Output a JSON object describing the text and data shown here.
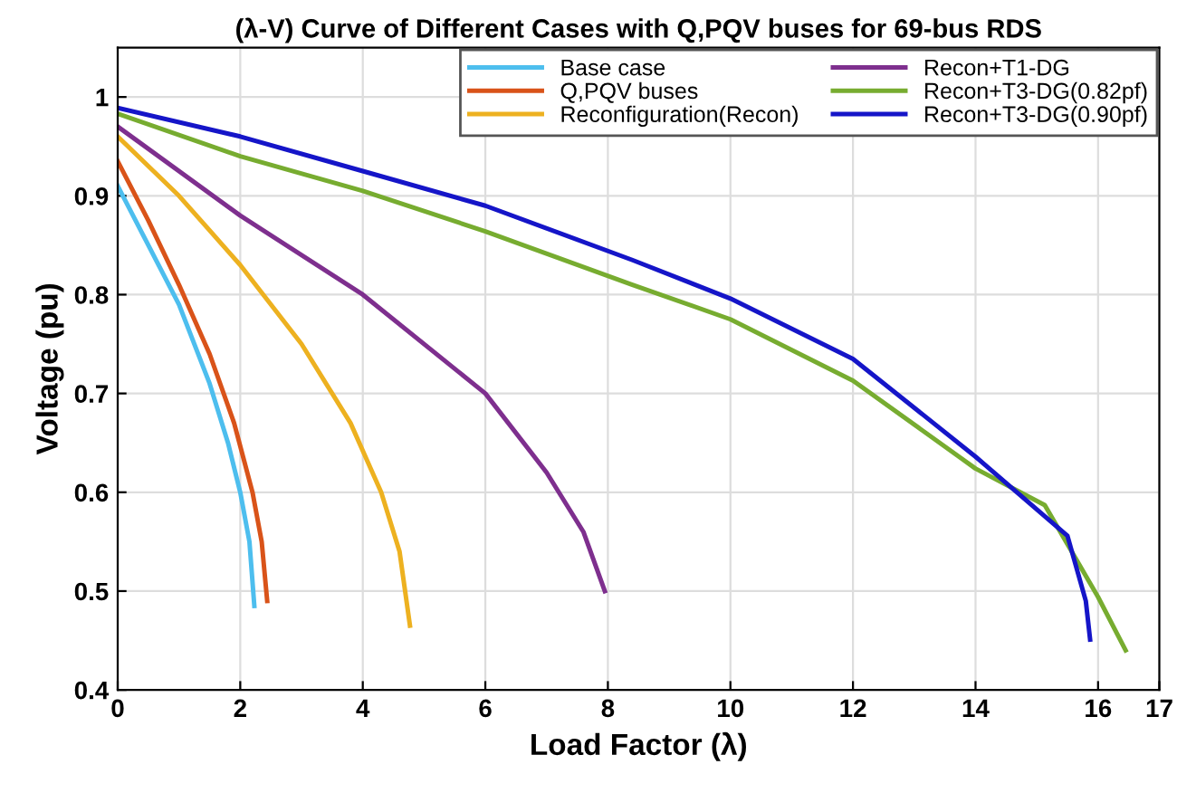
{
  "chart_data": {
    "type": "line",
    "title": "(λ-V) Curve of Different Cases with Q,PQV buses for 69-bus RDS",
    "xlabel": "Load Factor (λ)",
    "ylabel": "Voltage (pu)",
    "xlim": [
      0,
      17
    ],
    "xticks": [
      0,
      2,
      4,
      6,
      8,
      10,
      12,
      14,
      16,
      17
    ],
    "ylim": [
      0.4,
      1.05
    ],
    "yticks": [
      0.4,
      0.5,
      0.6,
      0.7,
      0.8,
      0.9,
      1
    ],
    "grid": true,
    "legend": "top right",
    "series": [
      {
        "name": "Base case",
        "color": "#4dbeee",
        "x": [
          0,
          0.5,
          1.0,
          1.5,
          1.8,
          2.0,
          2.15,
          2.23
        ],
        "values": [
          0.91,
          0.85,
          0.79,
          0.71,
          0.65,
          0.6,
          0.55,
          0.485
        ]
      },
      {
        "name": "Q,PQV buses",
        "color": "#d95319",
        "x": [
          0,
          0.5,
          1.0,
          1.5,
          1.9,
          2.2,
          2.35,
          2.44
        ],
        "values": [
          0.935,
          0.875,
          0.81,
          0.74,
          0.67,
          0.6,
          0.55,
          0.49
        ]
      },
      {
        "name": "Reconfiguration(Recon)",
        "color": "#edb120",
        "x": [
          0,
          1,
          2,
          3,
          3.8,
          4.3,
          4.6,
          4.77
        ],
        "values": [
          0.96,
          0.9,
          0.83,
          0.75,
          0.67,
          0.6,
          0.54,
          0.465
        ]
      },
      {
        "name": "Recon+T1-DG",
        "color": "#7e2f8e",
        "x": [
          0,
          2,
          4,
          6,
          7,
          7.6,
          7.95
        ],
        "values": [
          0.97,
          0.88,
          0.8,
          0.7,
          0.62,
          0.56,
          0.5
        ]
      },
      {
        "name": "Recon+T3-DG(0.82pf)",
        "color": "#77ac30",
        "x": [
          0,
          2,
          4,
          6,
          8.4,
          10,
          12,
          14,
          15.13,
          16,
          16.45
        ],
        "values": [
          0.983,
          0.94,
          0.905,
          0.864,
          0.81,
          0.775,
          0.713,
          0.624,
          0.587,
          0.494,
          0.44
        ]
      },
      {
        "name": "Recon+T3-DG(0.90pf)",
        "color": "#1515c8",
        "x": [
          0,
          2,
          4,
          6,
          8.4,
          10,
          12,
          14,
          15.5,
          15.8,
          15.87
        ],
        "values": [
          0.989,
          0.96,
          0.925,
          0.89,
          0.835,
          0.796,
          0.735,
          0.636,
          0.556,
          0.49,
          0.451
        ]
      }
    ]
  }
}
